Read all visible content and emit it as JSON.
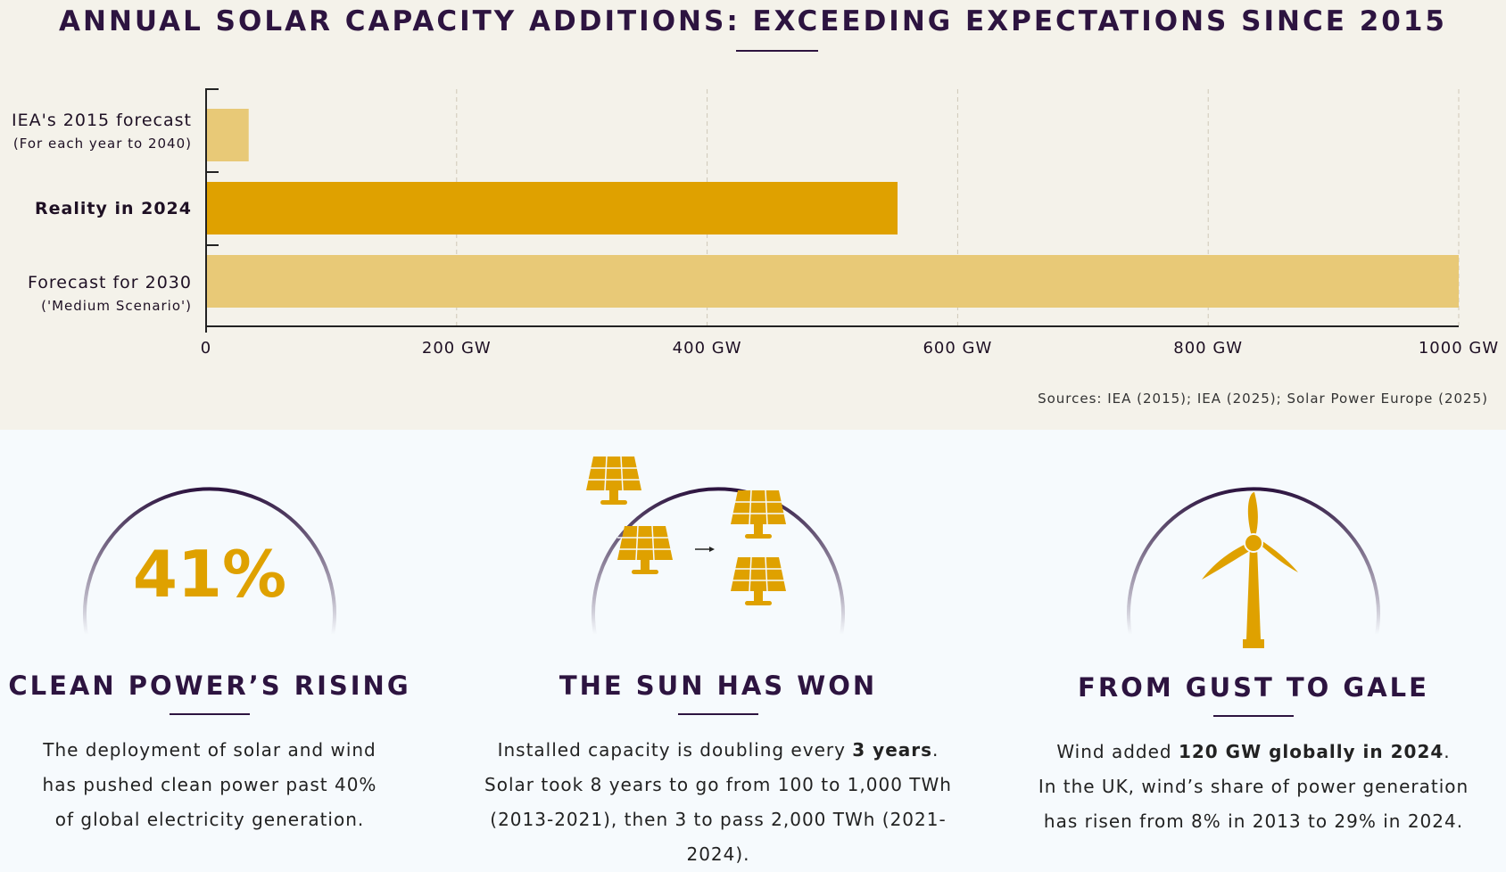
{
  "title": "ANNUAL SOLAR CAPACITY ADDITIONS: EXCEEDING EXPECTATIONS SINCE 2015",
  "chart_data": {
    "type": "bar",
    "orientation": "horizontal",
    "categories": [
      {
        "label": "IEA's 2015 forecast",
        "sublabel": "(For each year to 2040)"
      },
      {
        "label": "Reality in 2024",
        "sublabel": ""
      },
      {
        "label": "Forecast for 2030",
        "sublabel": "('Medium Scenario')"
      }
    ],
    "values": [
      34,
      552,
      1000
    ],
    "colors": [
      "#e8c977",
      "#dfa100",
      "#e8c977"
    ],
    "xlim": [
      0,
      1000
    ],
    "xticks": [
      "0",
      "200 GW",
      "400 GW",
      "600 GW",
      "800 GW",
      "1000 GW"
    ],
    "xtick_values": [
      0,
      200,
      400,
      600,
      800,
      1000
    ],
    "unit": "GW",
    "grid": "vertical dashed"
  },
  "sources": "Sources: IEA (2015); IEA (2025); Solar Power Europe (2025)",
  "cards": [
    {
      "stat": "41%",
      "heading": "CLEAN POWER’S RISING",
      "lines": [
        "The deployment of solar and wind",
        "has pushed clean power past 40%",
        "of global electricity generation."
      ]
    },
    {
      "heading": "THE SUN HAS WON",
      "l1a": "Installed capacity is doubling every ",
      "l1b": "3 years",
      "l1c": ".",
      "lines": [
        "Solar took 8 years to go from 100 to 1,000 TWh",
        "(2013-2021), then 3 to pass 2,000 TWh (2021-2024)."
      ]
    },
    {
      "heading": "FROM GUST TO GALE",
      "l1a": "Wind added ",
      "l1b": "120 GW globally in 2024",
      "l1c": ".",
      "lines": [
        "In the UK, wind’s share of power generation",
        "has risen from 8% in 2013 to 29% in 2024."
      ]
    }
  ]
}
